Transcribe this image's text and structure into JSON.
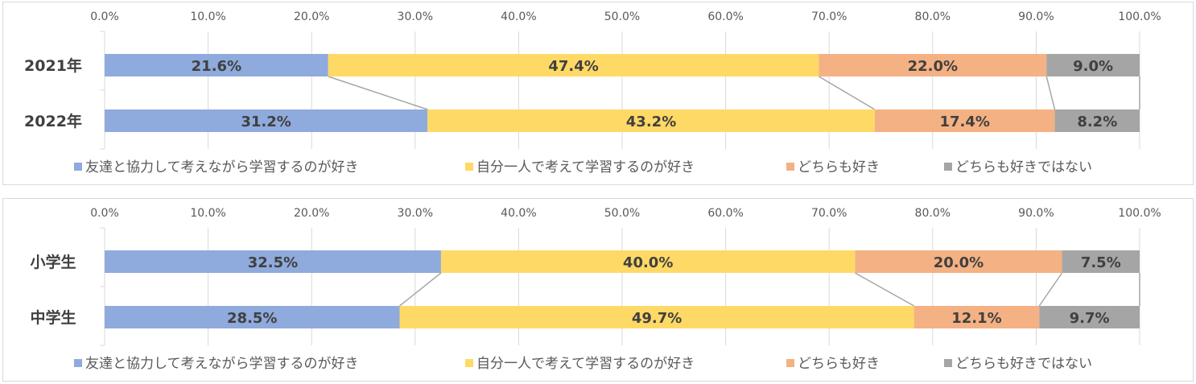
{
  "colors": {
    "grid": "#d9d9d9",
    "connector": "#a6a6a6",
    "text": "#404040",
    "tick": "#595959"
  },
  "chart_data": [
    {
      "type": "bar",
      "orientation": "horizontal",
      "stacked": true,
      "percent_stacked": true,
      "title": "",
      "categories": [
        "2021年",
        "2022年"
      ],
      "xlim": [
        0,
        100
      ],
      "xticks": [
        "0.0%",
        "10.0%",
        "20.0%",
        "30.0%",
        "40.0%",
        "50.0%",
        "60.0%",
        "70.0%",
        "80.0%",
        "90.0%",
        "100.0%"
      ],
      "grid": true,
      "series_lines": true,
      "legend_position": "bottom",
      "series": [
        {
          "name": "友達と協力して考えながら学習するのが好き",
          "color": "#8faadc",
          "values": [
            21.6,
            31.2
          ],
          "labels": [
            "21.6%",
            "31.2%"
          ]
        },
        {
          "name": "自分一人で考えて学習するのが好き",
          "color": "#ffd966",
          "values": [
            47.4,
            43.2
          ],
          "labels": [
            "47.4%",
            "43.2%"
          ]
        },
        {
          "name": "どちらも好き",
          "color": "#f4b183",
          "values": [
            22.0,
            17.4
          ],
          "labels": [
            "22.0%",
            "17.4%"
          ]
        },
        {
          "name": "どちらも好きではない",
          "color": "#a5a5a5",
          "values": [
            9.0,
            8.2
          ],
          "labels": [
            "9.0%",
            "8.2%"
          ]
        }
      ]
    },
    {
      "type": "bar",
      "orientation": "horizontal",
      "stacked": true,
      "percent_stacked": true,
      "title": "",
      "categories": [
        "小学生",
        "中学生"
      ],
      "xlim": [
        0,
        100
      ],
      "xticks": [
        "0.0%",
        "10.0%",
        "20.0%",
        "30.0%",
        "40.0%",
        "50.0%",
        "60.0%",
        "70.0%",
        "80.0%",
        "90.0%",
        "100.0%"
      ],
      "grid": true,
      "series_lines": true,
      "legend_position": "bottom",
      "series": [
        {
          "name": "友達と協力して考えながら学習するのが好き",
          "color": "#8faadc",
          "values": [
            32.5,
            28.5
          ],
          "labels": [
            "32.5%",
            "28.5%"
          ]
        },
        {
          "name": "自分一人で考えて学習するのが好き",
          "color": "#ffd966",
          "values": [
            40.0,
            49.7
          ],
          "labels": [
            "40.0%",
            "49.7%"
          ]
        },
        {
          "name": "どちらも好き",
          "color": "#f4b183",
          "values": [
            20.0,
            12.1
          ],
          "labels": [
            "20.0%",
            "12.1%"
          ]
        },
        {
          "name": "どちらも好きではない",
          "color": "#a5a5a5",
          "values": [
            7.5,
            9.7
          ],
          "labels": [
            "7.5%",
            "9.7%"
          ]
        }
      ]
    }
  ]
}
